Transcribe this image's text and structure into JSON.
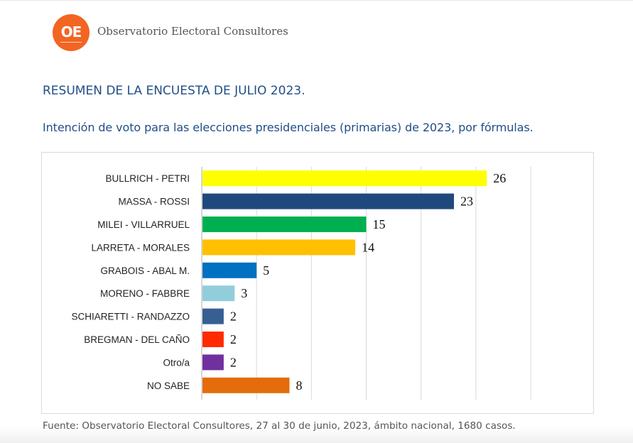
{
  "header": {
    "logo_text": "OE",
    "brand_name": "Observatorio Electoral Consultores",
    "brand_color": "#f26522"
  },
  "title": "RESUMEN DE LA ENCUESTA DE JULIO 2023.",
  "subtitle": "Intención de voto para las elecciones presidenciales (primarias) de 2023, por fórmulas.",
  "footer": "Fuente: Observatorio Electoral Consultores, 27 al 30 de junio, 2023, ámbito nacional, 1680 casos.",
  "chart_data": {
    "type": "bar",
    "orientation": "horizontal",
    "title": "Intención de voto para las elecciones presidenciales (primarias) de 2023, por fórmulas.",
    "xlabel": "",
    "ylabel": "",
    "xlim": [
      0,
      30
    ],
    "grid": true,
    "grid_step": 5,
    "legend": "none",
    "categories": [
      "BULLRICH - PETRI",
      "MASSA - ROSSI",
      "MILEI - VILLARRUEL",
      "LARRETA - MORALES",
      "GRABOIS - ABAL M.",
      "MORENO - FABBRE",
      "SCHIARETTI - RANDAZZO",
      "BREGMAN - DEL CAÑO",
      "Otro/a",
      "NO SABE"
    ],
    "values": [
      26,
      23,
      15,
      14,
      5,
      3,
      2,
      2,
      2,
      8
    ],
    "colors": [
      "#ffff00",
      "#1f497d",
      "#00b050",
      "#ffc000",
      "#0070c0",
      "#92cddc",
      "#376092",
      "#ff2a00",
      "#7030a0",
      "#e46c0a"
    ]
  }
}
